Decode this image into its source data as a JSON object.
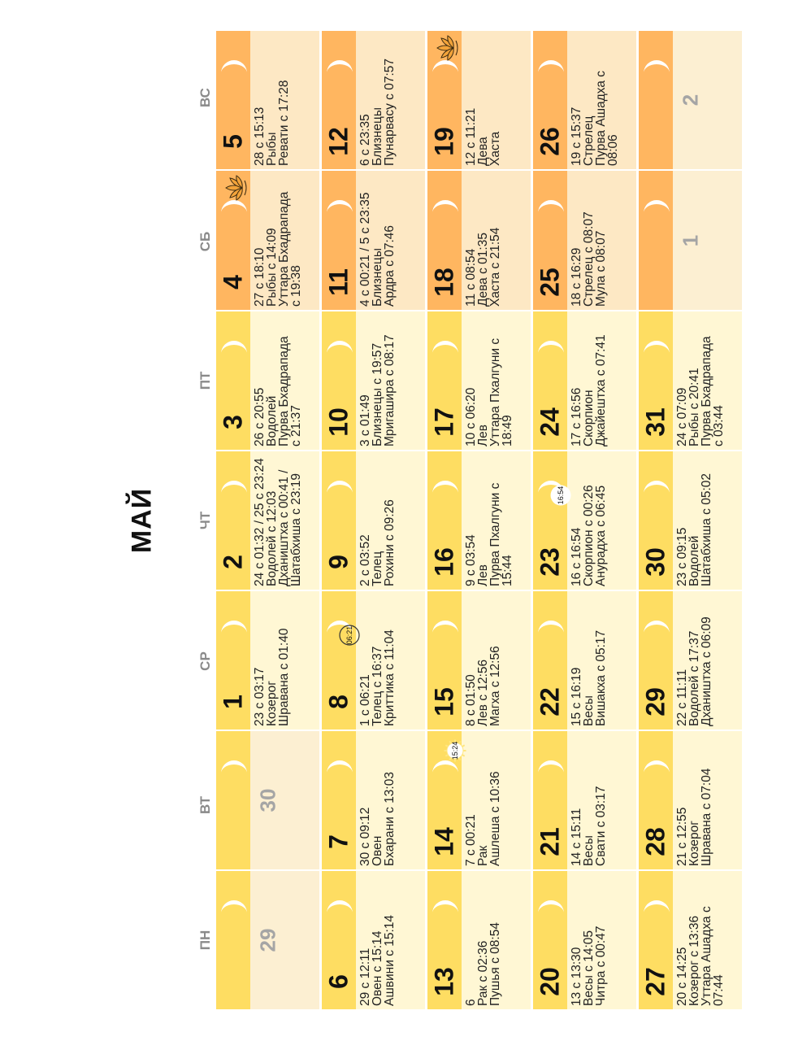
{
  "calendar": {
    "month": "МАЙ",
    "weekdays": [
      "ПН",
      "ВТ",
      "СР",
      "ЧТ",
      "ПТ",
      "СБ",
      "ВС"
    ],
    "colors": {
      "weekday_strip": "#fedd62",
      "weekday_body": "#fff7d4",
      "weekend_strip": "#ffb660",
      "weekend_body": "#fde8c4",
      "other_month_body": "#fcefd2",
      "badge_circle": "#ffffff",
      "lotus": "#f2a33a"
    },
    "icons": {
      "moon": "crescent-moon-icon",
      "lotus": "lotus-icon",
      "eclipse": "sun-eclipse-icon",
      "time_circle": "time-circle-icon"
    },
    "weeks": [
      [
        {
          "day": "29",
          "other_month": true
        },
        {
          "day": "30",
          "other_month": true
        },
        {
          "day": "1",
          "lines": [
            "23 с 03:17",
            "Козерог",
            "Шравана с 01:40"
          ]
        },
        {
          "day": "2",
          "lines": [
            "24 с 01:32 / 25 с 23:24",
            "Водолей с 12:03",
            "Дхаништха с 00:41 /",
            "Шатабхиша с 23:19"
          ]
        },
        {
          "day": "3",
          "lines": [
            "26 с 20:55",
            "Водолей",
            "Пурва Бхадрапада",
            "с 21:37"
          ]
        },
        {
          "day": "4",
          "lines": [
            "27 с 18:10",
            "Рыбы с 14:09",
            "Уттара Бхадрапада",
            "с 19:38"
          ],
          "lotus": true
        },
        {
          "day": "5",
          "lines": [
            "28 с 15:13",
            "Рыбы",
            "Ревати с 17:28"
          ]
        }
      ],
      [
        {
          "day": "6",
          "lines": [
            "29 с 12:11",
            "Овен с 15:14",
            "Ашвини с 15:14"
          ]
        },
        {
          "day": "7",
          "lines": [
            "30 с 09:12",
            "Овен",
            "Бхарани с 13:03"
          ]
        },
        {
          "day": "8",
          "lines": [
            "1 с 06:21",
            "Телец с 16:37",
            "Криттика с 11:04"
          ],
          "badge": "06:21",
          "badge_type": "circle"
        },
        {
          "day": "9",
          "lines": [
            "2 с 03:52",
            "Телец",
            "Рохини с 09:26"
          ]
        },
        {
          "day": "10",
          "lines": [
            "3 с 01:49",
            "Близнецы с 19:57",
            "Мригашира с 08:17"
          ]
        },
        {
          "day": "11",
          "lines": [
            "4 с 00:21 / 5 с 23:35",
            "Близнецы",
            "Ардра с 07:46"
          ]
        },
        {
          "day": "12",
          "lines": [
            "6 с 23:35",
            "Близнецы",
            "Пунарвасу с 07:57"
          ]
        }
      ],
      [
        {
          "day": "13",
          "lines": [
            "6",
            "Рак с 02:36",
            "Пушья с 08:54"
          ]
        },
        {
          "day": "14",
          "lines": [
            "7 с 00:21",
            "Рак",
            "Ашлеша с 10:36"
          ],
          "badge": "15:24",
          "badge_type": "sun"
        },
        {
          "day": "15",
          "lines": [
            "8 с 01:50",
            "Лев с 12:56",
            "Магха с 12:56"
          ]
        },
        {
          "day": "16",
          "lines": [
            "9 с 03:54",
            "Лев",
            "Пурва Пхалгуни с",
            "15:44"
          ]
        },
        {
          "day": "17",
          "lines": [
            "10 с 06:20",
            "Лев",
            "Уттара Пхалгуни с",
            "18:49"
          ]
        },
        {
          "day": "18",
          "lines": [
            "11 с 08:54",
            "Дева с 01:35",
            "Хаста с 21:54"
          ]
        },
        {
          "day": "19",
          "lines": [
            "12 с 11:21",
            "Дева",
            "Хаста"
          ],
          "lotus": true
        }
      ],
      [
        {
          "day": "20",
          "lines": [
            "13 с 13:30",
            "Весы с 14:05",
            "Читра с 00:47"
          ]
        },
        {
          "day": "21",
          "lines": [
            "14 с 15:11",
            "Весы",
            "Свати с 03:17"
          ]
        },
        {
          "day": "22",
          "lines": [
            "15 с 16:19",
            "Весы",
            "Вишакха с 05:17"
          ]
        },
        {
          "day": "23",
          "lines": [
            "16 с 16:54",
            "Скорпион с 00:26",
            "Анурадха с 06:45"
          ],
          "badge": "16:54",
          "badge_type": "moon"
        },
        {
          "day": "24",
          "lines": [
            "17 с 16:56",
            "Скорпион",
            "Джайештха с 07:41"
          ]
        },
        {
          "day": "25",
          "lines": [
            "18 с 16:29",
            "Стрелец с 08:07",
            "Мула с 08:07"
          ]
        },
        {
          "day": "26",
          "lines": [
            "19 с 15:37",
            "Стрелец",
            "Пурва Ашадха с",
            "08:06"
          ]
        }
      ],
      [
        {
          "day": "27",
          "lines": [
            "20 с 14:25",
            "Козерог с 13:36",
            "Уттара Ашадха с",
            "07:44"
          ]
        },
        {
          "day": "28",
          "lines": [
            "21 с 12:55",
            "Козерог",
            "Шравана с 07:04"
          ]
        },
        {
          "day": "29",
          "lines": [
            "22 с 11:11",
            "Водолей с 17:37",
            "Дхаништха с 06:09"
          ]
        },
        {
          "day": "30",
          "lines": [
            "23 с 09:15",
            "Водолей",
            "Шатабхиша с 05:02"
          ]
        },
        {
          "day": "31",
          "lines": [
            "24 с 07:09",
            "Рыбы с 20:41",
            "Пурва Бхадрапада",
            "с 03:44"
          ]
        },
        {
          "day": "1",
          "other_month": true
        },
        {
          "day": "2",
          "other_month": true
        }
      ]
    ]
  }
}
